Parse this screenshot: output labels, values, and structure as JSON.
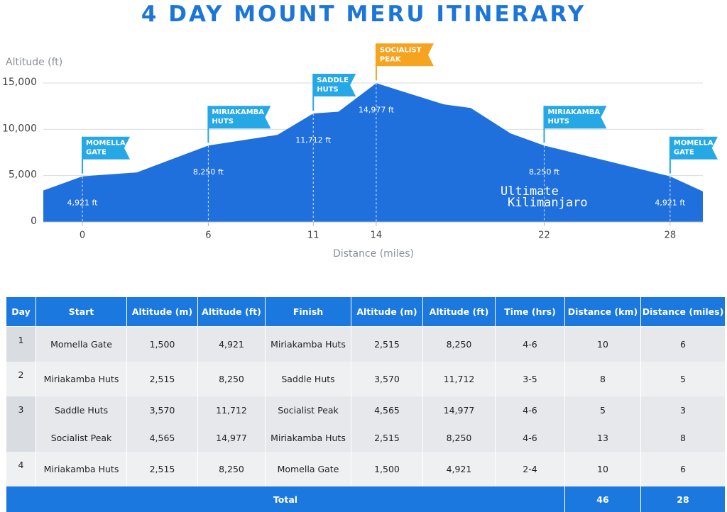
{
  "chart_data": {
    "type": "area",
    "title": "4 DAY MOUNT MERU ITINERARY",
    "y_label": "Altitude (ft)",
    "x_label": "Distance (miles)",
    "color": "#1f70dc",
    "grid": true,
    "x": [
      -1.86,
      0,
      2.6,
      6,
      9.3,
      11,
      12.2,
      14,
      17.2,
      18.5,
      20.4,
      22,
      28,
      29.56
    ],
    "values": [
      3400,
      4921,
      5350,
      8250,
      9400,
      11712,
      11900,
      14977,
      12700,
      12300,
      9560,
      8250,
      4921,
      3300
    ],
    "value_labels": [
      null,
      "4,921 ft",
      null,
      "8,250 ft",
      null,
      "11,712 ft",
      null,
      "14,977 ft",
      null,
      null,
      null,
      "8,250 ft",
      "4,921 ft",
      null
    ],
    "xlim": [
      -1.86,
      29.56
    ],
    "xticks": [
      0,
      6,
      11,
      14,
      22,
      28
    ],
    "ylim": [
      0,
      15000
    ],
    "yticks": [
      0,
      {
        "value": 5000,
        "label": "5,000"
      },
      {
        "value": 10000,
        "label": "10,000"
      },
      {
        "value": 15000,
        "label": "15,000"
      }
    ],
    "flags": [
      {
        "x": 0,
        "text": [
          "MOMELLA",
          "GATE"
        ],
        "color": "#26a8e6"
      },
      {
        "x": 6,
        "text": [
          "MIRIAKAMBA",
          "HUTS"
        ],
        "color": "#26a8e6"
      },
      {
        "x": 11,
        "text": [
          "SADDLE",
          "HUTS"
        ],
        "color": "#26a8e6"
      },
      {
        "x": 14,
        "text": [
          "SOCIALIST",
          "PEAK"
        ],
        "color": "#f6a320"
      },
      {
        "x": 22,
        "text": [
          "MIRIAKAMBA",
          "HUTS"
        ],
        "color": "#26a8e6"
      },
      {
        "x": 28,
        "text": [
          "MOMELLA",
          "GATE"
        ],
        "color": "#26a8e6"
      }
    ]
  },
  "logo": [
    "Ultimate",
    "Kilimanjaro"
  ],
  "table": {
    "columns": [
      "Day",
      "Start",
      "Altitude (m)",
      "Altitude (ft)",
      "Finish",
      "Altitude (m)",
      "Altitude (ft)",
      "Time (hrs)",
      "Distance (km)",
      "Distance (miles)"
    ],
    "days": [
      {
        "day": "1",
        "legs": [
          [
            "Momella Gate",
            "1,500",
            "4,921",
            "Miriakamba Huts",
            "2,515",
            "8,250",
            "4-6",
            "10",
            "6"
          ]
        ]
      },
      {
        "day": "2",
        "legs": [
          [
            "Miriakamba Huts",
            "2,515",
            "8,250",
            "Saddle Huts",
            "3,570",
            "11,712",
            "3-5",
            "8",
            "5"
          ]
        ]
      },
      {
        "day": "3",
        "legs": [
          [
            "Saddle Huts",
            "3,570",
            "11,712",
            "Socialist Peak",
            "4,565",
            "14,977",
            "4-6",
            "5",
            "3"
          ],
          [
            "Socialist Peak",
            "4,565",
            "14,977",
            "Miriakamba Huts",
            "2,515",
            "8,250",
            "4-6",
            "13",
            "8"
          ]
        ]
      },
      {
        "day": "4",
        "legs": [
          [
            "Miriakamba Huts",
            "2,515",
            "8,250",
            "Momella Gate",
            "1,500",
            "4,921",
            "2-4",
            "10",
            "6"
          ]
        ]
      }
    ],
    "total": {
      "label": "Total",
      "values": [
        "46",
        "28"
      ]
    }
  }
}
